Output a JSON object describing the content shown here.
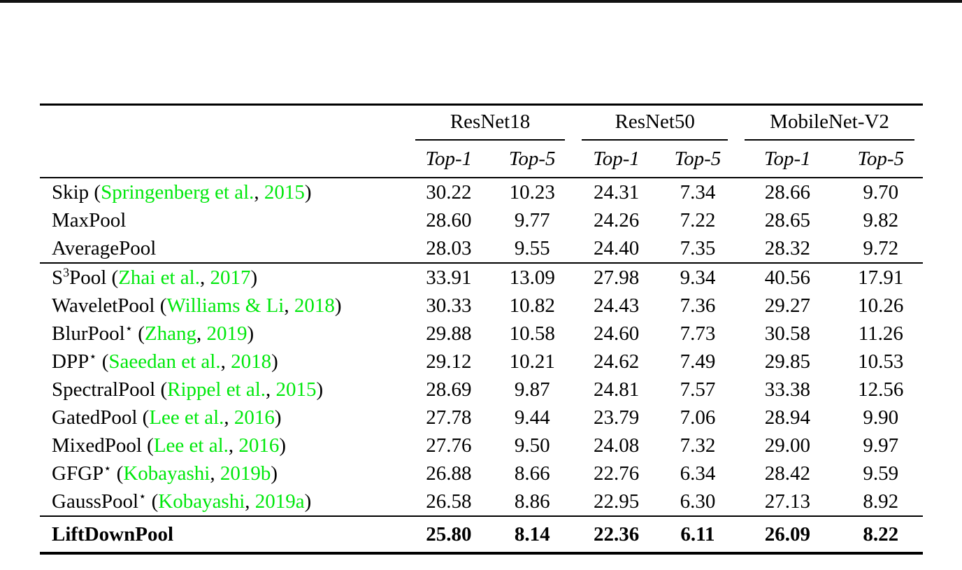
{
  "colors": {
    "citation_green": "#00E80C",
    "text": "#000000",
    "rule": "#000000",
    "background": "#ffffff"
  },
  "table": {
    "groups": [
      {
        "id": "resnet18",
        "label": "ResNet18"
      },
      {
        "id": "resnet50",
        "label": "ResNet50"
      },
      {
        "id": "mobilenet-v2",
        "label": "MobileNet-V2"
      }
    ],
    "subheaders": [
      {
        "group": "resnet18",
        "label": "Top-1"
      },
      {
        "group": "resnet18",
        "label": "Top-5"
      },
      {
        "group": "resnet50",
        "label": "Top-1"
      },
      {
        "group": "resnet50",
        "label": "Top-5"
      },
      {
        "group": "mobilenet-v2",
        "label": "Top-1"
      },
      {
        "group": "mobilenet-v2",
        "label": "Top-5"
      }
    ],
    "sections": [
      {
        "rows": [
          {
            "label": [
              {
                "t": "Skip ("
              },
              {
                "t": "Springenberg et al.",
                "g": 1
              },
              {
                "t": ", "
              },
              {
                "t": "2015",
                "g": 1
              },
              {
                "t": ")"
              }
            ],
            "values": [
              "30.22",
              "10.23",
              "24.31",
              "7.34",
              "28.66",
              "9.70"
            ]
          },
          {
            "label": [
              {
                "t": "MaxPool"
              }
            ],
            "values": [
              "28.60",
              "9.77",
              "24.26",
              "7.22",
              "28.65",
              "9.82"
            ]
          },
          {
            "label": [
              {
                "t": "AveragePool"
              }
            ],
            "values": [
              "28.03",
              "9.55",
              "24.40",
              "7.35",
              "28.32",
              "9.72"
            ]
          }
        ]
      },
      {
        "rows": [
          {
            "label": [
              {
                "t": "S"
              },
              {
                "t": "3",
                "sup": 1
              },
              {
                "t": "Pool ("
              },
              {
                "t": "Zhai et al.",
                "g": 1
              },
              {
                "t": ", "
              },
              {
                "t": "2017",
                "g": 1
              },
              {
                "t": ")"
              }
            ],
            "values": [
              "33.91",
              "13.09",
              "27.98",
              "9.34",
              "40.56",
              "17.91"
            ]
          },
          {
            "label": [
              {
                "t": "WaveletPool ("
              },
              {
                "t": "Williams & Li",
                "g": 1
              },
              {
                "t": ", "
              },
              {
                "t": "2018",
                "g": 1
              },
              {
                "t": ")"
              }
            ],
            "values": [
              "30.33",
              "10.82",
              "24.43",
              "7.36",
              "29.27",
              "10.26"
            ]
          },
          {
            "label": [
              {
                "t": "BlurPool"
              },
              {
                "t": "⋆",
                "sup": 1
              },
              {
                "t": " ("
              },
              {
                "t": "Zhang",
                "g": 1
              },
              {
                "t": ", "
              },
              {
                "t": "2019",
                "g": 1
              },
              {
                "t": ")"
              }
            ],
            "values": [
              "29.88",
              "10.58",
              "24.60",
              "7.73",
              "30.58",
              "11.26"
            ]
          },
          {
            "label": [
              {
                "t": "DPP"
              },
              {
                "t": "⋆",
                "sup": 1
              },
              {
                "t": " ("
              },
              {
                "t": "Saeedan et al.",
                "g": 1
              },
              {
                "t": ", "
              },
              {
                "t": "2018",
                "g": 1
              },
              {
                "t": ")"
              }
            ],
            "values": [
              "29.12",
              "10.21",
              "24.62",
              "7.49",
              "29.85",
              "10.53"
            ]
          },
          {
            "label": [
              {
                "t": "SpectralPool ("
              },
              {
                "t": "Rippel et al.",
                "g": 1
              },
              {
                "t": ", "
              },
              {
                "t": "2015",
                "g": 1
              },
              {
                "t": ")"
              }
            ],
            "values": [
              "28.69",
              "9.87",
              "24.81",
              "7.57",
              "33.38",
              "12.56"
            ]
          },
          {
            "label": [
              {
                "t": "GatedPool ("
              },
              {
                "t": "Lee et al.",
                "g": 1
              },
              {
                "t": ", "
              },
              {
                "t": "2016",
                "g": 1
              },
              {
                "t": ")"
              }
            ],
            "values": [
              "27.78",
              "9.44",
              "23.79",
              "7.06",
              "28.94",
              "9.90"
            ]
          },
          {
            "label": [
              {
                "t": "MixedPool ("
              },
              {
                "t": "Lee et al.",
                "g": 1
              },
              {
                "t": ", "
              },
              {
                "t": "2016",
                "g": 1
              },
              {
                "t": ")"
              }
            ],
            "values": [
              "27.76",
              "9.50",
              "24.08",
              "7.32",
              "29.00",
              "9.97"
            ]
          },
          {
            "label": [
              {
                "t": "GFGP"
              },
              {
                "t": "⋆",
                "sup": 1
              },
              {
                "t": " ("
              },
              {
                "t": "Kobayashi",
                "g": 1
              },
              {
                "t": ", "
              },
              {
                "t": "2019b",
                "g": 1
              },
              {
                "t": ")"
              }
            ],
            "values": [
              "26.88",
              "8.66",
              "22.76",
              "6.34",
              "28.42",
              "9.59"
            ]
          },
          {
            "label": [
              {
                "t": "GaussPool"
              },
              {
                "t": "⋆",
                "sup": 1
              },
              {
                "t": " ("
              },
              {
                "t": "Kobayashi",
                "g": 1
              },
              {
                "t": ", "
              },
              {
                "t": "2019a",
                "g": 1
              },
              {
                "t": ")"
              }
            ],
            "values": [
              "26.58",
              "8.86",
              "22.95",
              "6.30",
              "27.13",
              "8.92"
            ]
          }
        ]
      },
      {
        "emphasis": true,
        "rows": [
          {
            "bold": true,
            "label": [
              {
                "t": "LiftDownPool"
              }
            ],
            "values": [
              "25.80",
              "8.14",
              "22.36",
              "6.11",
              "26.09",
              "8.22"
            ]
          }
        ]
      }
    ]
  }
}
